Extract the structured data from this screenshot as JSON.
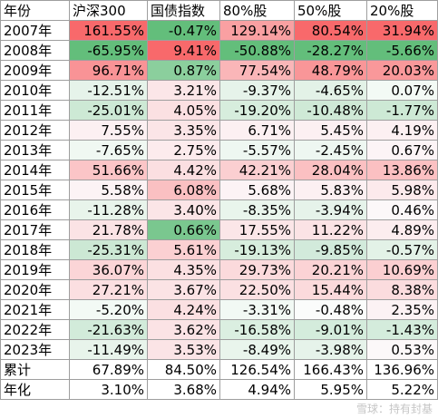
{
  "headers": [
    "年份",
    "沪深300",
    "国债指数",
    "80%股",
    "50%股",
    "20%股"
  ],
  "rows": [
    {
      "label": "2007年",
      "cells": [
        {
          "v": "161.55%",
          "c": "#f8696b"
        },
        {
          "v": "-0.47%",
          "c": "#63be7b"
        },
        {
          "v": "129.14%",
          "c": "#f9a0a2"
        },
        {
          "v": "80.54%",
          "c": "#f8696b"
        },
        {
          "v": "31.94%",
          "c": "#f8696b"
        }
      ]
    },
    {
      "label": "2008年",
      "cells": [
        {
          "v": "-65.95%",
          "c": "#63be7b"
        },
        {
          "v": "9.41%",
          "c": "#f8696b"
        },
        {
          "v": "-50.88%",
          "c": "#63be7b"
        },
        {
          "v": "-28.27%",
          "c": "#63be7b"
        },
        {
          "v": "-5.66%",
          "c": "#63be7b"
        }
      ]
    },
    {
      "label": "2009年",
      "cells": [
        {
          "v": "96.71%",
          "c": "#f99396"
        },
        {
          "v": "0.87%",
          "c": "#8bcf9d"
        },
        {
          "v": "77.54%",
          "c": "#fab6b8"
        },
        {
          "v": "48.79%",
          "c": "#f99698"
        },
        {
          "v": "20.03%",
          "c": "#f9989a"
        }
      ]
    },
    {
      "label": "2010年",
      "cells": [
        {
          "v": "-12.51%",
          "c": "#e6f3ea"
        },
        {
          "v": "3.21%",
          "c": "#fbe6e8"
        },
        {
          "v": "-9.37%",
          "c": "#e6f3ea"
        },
        {
          "v": "-4.65%",
          "c": "#e3f2e7"
        },
        {
          "v": "0.07%",
          "c": "#f3faf5"
        }
      ]
    },
    {
      "label": "2011年",
      "cells": [
        {
          "v": "-25.01%",
          "c": "#cde9d5"
        },
        {
          "v": "4.05%",
          "c": "#fbe0e2"
        },
        {
          "v": "-19.20%",
          "c": "#d7eddd"
        },
        {
          "v": "-10.48%",
          "c": "#cfe9d6"
        },
        {
          "v": "-1.77%",
          "c": "#cde9d5"
        }
      ]
    },
    {
      "label": "2012年",
      "cells": [
        {
          "v": "7.55%",
          "c": "#fcf0f2"
        },
        {
          "v": "3.35%",
          "c": "#fbe5e7"
        },
        {
          "v": "6.71%",
          "c": "#fcf0f2"
        },
        {
          "v": "5.45%",
          "c": "#fcf0f2"
        },
        {
          "v": "4.19%",
          "c": "#fcf0f2"
        }
      ]
    },
    {
      "label": "2013年",
      "cells": [
        {
          "v": "-7.65%",
          "c": "#f0f8f2"
        },
        {
          "v": "2.75%",
          "c": "#fcebed"
        },
        {
          "v": "-5.57%",
          "c": "#eef7f1"
        },
        {
          "v": "-2.45%",
          "c": "#eef7f1"
        },
        {
          "v": "0.67%",
          "c": "#fcf4f6"
        }
      ]
    },
    {
      "label": "2014年",
      "cells": [
        {
          "v": "51.66%",
          "c": "#fbc5c7"
        },
        {
          "v": "4.42%",
          "c": "#fbdfe1"
        },
        {
          "v": "42.21%",
          "c": "#fbcfd1"
        },
        {
          "v": "28.04%",
          "c": "#fbc0c2"
        },
        {
          "v": "13.86%",
          "c": "#fbc0c2"
        }
      ]
    },
    {
      "label": "2015年",
      "cells": [
        {
          "v": "5.58%",
          "c": "#fcf3f5"
        },
        {
          "v": "6.08%",
          "c": "#fac0c2"
        },
        {
          "v": "5.68%",
          "c": "#fcf3f5"
        },
        {
          "v": "5.83%",
          "c": "#fcf0f2"
        },
        {
          "v": "5.98%",
          "c": "#fceaec"
        }
      ]
    },
    {
      "label": "2016年",
      "cells": [
        {
          "v": "-11.28%",
          "c": "#e8f4eb"
        },
        {
          "v": "3.40%",
          "c": "#fbe5e7"
        },
        {
          "v": "-8.35%",
          "c": "#e9f5ec"
        },
        {
          "v": "-3.94%",
          "c": "#e6f3ea"
        },
        {
          "v": "0.46%",
          "c": "#fcf8f9"
        }
      ]
    },
    {
      "label": "2017年",
      "cells": [
        {
          "v": "21.78%",
          "c": "#fbe3e5"
        },
        {
          "v": "0.66%",
          "c": "#7ac78f"
        },
        {
          "v": "17.55%",
          "c": "#fbe6e8"
        },
        {
          "v": "11.22%",
          "c": "#fbe3e5"
        },
        {
          "v": "4.89%",
          "c": "#fcedef"
        }
      ]
    },
    {
      "label": "2018年",
      "cells": [
        {
          "v": "-25.31%",
          "c": "#cce8d4"
        },
        {
          "v": "5.61%",
          "c": "#fbd0d2"
        },
        {
          "v": "-19.13%",
          "c": "#d7eddd"
        },
        {
          "v": "-9.85%",
          "c": "#d2eadb"
        },
        {
          "v": "-0.57%",
          "c": "#e3f2e7"
        }
      ]
    },
    {
      "label": "2019年",
      "cells": [
        {
          "v": "36.07%",
          "c": "#fbd5d7"
        },
        {
          "v": "4.35%",
          "c": "#fbe0e2"
        },
        {
          "v": "29.73%",
          "c": "#fbdadc"
        },
        {
          "v": "20.21%",
          "c": "#fbd3d5"
        },
        {
          "v": "10.69%",
          "c": "#fbcfd1"
        }
      ]
    },
    {
      "label": "2020年",
      "cells": [
        {
          "v": "27.21%",
          "c": "#fbdfe1"
        },
        {
          "v": "3.67%",
          "c": "#fbe3e5"
        },
        {
          "v": "22.50%",
          "c": "#fbe0e2"
        },
        {
          "v": "15.44%",
          "c": "#fbdadc"
        },
        {
          "v": "8.38%",
          "c": "#fbdcde"
        }
      ]
    },
    {
      "label": "2021年",
      "cells": [
        {
          "v": "-5.20%",
          "c": "#f3faf5"
        },
        {
          "v": "4.24%",
          "c": "#fbe0e2"
        },
        {
          "v": "-3.31%",
          "c": "#f2f9f4"
        },
        {
          "v": "-0.48%",
          "c": "#fbfcfb"
        },
        {
          "v": "2.35%",
          "c": "#fcf2f4"
        }
      ]
    },
    {
      "label": "2022年",
      "cells": [
        {
          "v": "-21.63%",
          "c": "#d2ebda"
        },
        {
          "v": "3.62%",
          "c": "#fbe3e5"
        },
        {
          "v": "-16.58%",
          "c": "#dbefe1"
        },
        {
          "v": "-9.01%",
          "c": "#d4ecdc"
        },
        {
          "v": "-1.43%",
          "c": "#d4ecdc"
        }
      ]
    },
    {
      "label": "2023年",
      "cells": [
        {
          "v": "-11.49%",
          "c": "#e8f4eb"
        },
        {
          "v": "3.53%",
          "c": "#fbe4e6"
        },
        {
          "v": "-8.49%",
          "c": "#e9f5ec"
        },
        {
          "v": "-3.98%",
          "c": "#e6f3ea"
        },
        {
          "v": "0.53%",
          "c": "#fcf8f9"
        }
      ]
    },
    {
      "label": "累计",
      "cells": [
        {
          "v": "67.89%",
          "c": "#ffffff"
        },
        {
          "v": "84.50%",
          "c": "#ffffff"
        },
        {
          "v": "126.54%",
          "c": "#ffffff"
        },
        {
          "v": "166.43%",
          "c": "#ffffff"
        },
        {
          "v": "136.96%",
          "c": "#ffffff"
        }
      ]
    },
    {
      "label": "年化",
      "cells": [
        {
          "v": "3.10%",
          "c": "#ffffff"
        },
        {
          "v": "3.68%",
          "c": "#ffffff"
        },
        {
          "v": "4.94%",
          "c": "#ffffff"
        },
        {
          "v": "5.95%",
          "c": "#ffffff"
        },
        {
          "v": "5.22%",
          "c": "#ffffff"
        }
      ]
    }
  ],
  "watermark": "雪球：持有封基"
}
